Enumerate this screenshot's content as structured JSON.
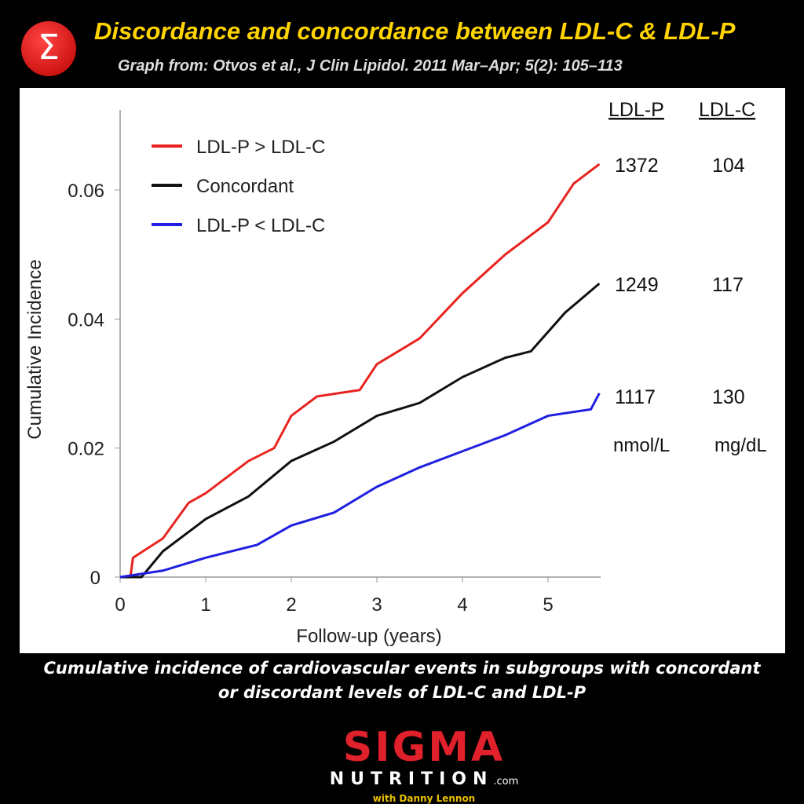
{
  "header": {
    "title": "Discordance and concordance between LDL-C & LDL-P",
    "subtitle": "Graph from: Otvos et al., J Clin Lipidol. 2011 Mar–Apr; 5(2): 105–113",
    "badge": "Σ"
  },
  "caption": "Cumulative incidence of cardiovascular events in subgroups with concordant or discordant levels of LDL-C and LDL-P",
  "logo": {
    "main": "SIGMA",
    "sub": "NUTRITION",
    "domain": ".com",
    "with": "with Danny Lennon"
  },
  "chart_data": {
    "type": "line",
    "title": "",
    "xlabel": "Follow-up (years)",
    "ylabel": "Cumulative Incidence",
    "xlim": [
      0,
      5.7
    ],
    "ylim": [
      0,
      0.07
    ],
    "xticks": [
      "0",
      "1",
      "2",
      "3",
      "4",
      "5"
    ],
    "yticks": [
      "0",
      "0.02",
      "0.04",
      "0.06"
    ],
    "legend_position": "top-left",
    "series": [
      {
        "name": "LDL-P > LDL-C",
        "color": "#e8231f",
        "ldl_p": "1372",
        "ldl_c": "104",
        "points": [
          [
            0,
            0
          ],
          [
            0.12,
            0
          ],
          [
            0.15,
            0.003
          ],
          [
            0.5,
            0.006
          ],
          [
            0.8,
            0.0115
          ],
          [
            1,
            0.013
          ],
          [
            1.5,
            0.018
          ],
          [
            1.8,
            0.02
          ],
          [
            2,
            0.025
          ],
          [
            2.3,
            0.028
          ],
          [
            2.8,
            0.029
          ],
          [
            3,
            0.033
          ],
          [
            3.5,
            0.037
          ],
          [
            4,
            0.044
          ],
          [
            4.5,
            0.05
          ],
          [
            5,
            0.055
          ],
          [
            5.3,
            0.061
          ],
          [
            5.6,
            0.064
          ]
        ]
      },
      {
        "name": "Concordant",
        "color": "#111111",
        "ldl_p": "1249",
        "ldl_c": "117",
        "points": [
          [
            0,
            0
          ],
          [
            0.25,
            0
          ],
          [
            0.5,
            0.004
          ],
          [
            1,
            0.009
          ],
          [
            1.5,
            0.0125
          ],
          [
            2,
            0.018
          ],
          [
            2.5,
            0.021
          ],
          [
            3,
            0.025
          ],
          [
            3.5,
            0.027
          ],
          [
            4,
            0.031
          ],
          [
            4.5,
            0.034
          ],
          [
            4.8,
            0.035
          ],
          [
            5.2,
            0.041
          ],
          [
            5.6,
            0.0455
          ]
        ]
      },
      {
        "name": "LDL-P < LDL-C",
        "color": "#2020e0",
        "ldl_p": "1117",
        "ldl_c": "130",
        "points": [
          [
            0,
            0
          ],
          [
            0.5,
            0.001
          ],
          [
            1,
            0.003
          ],
          [
            1.6,
            0.005
          ],
          [
            2,
            0.008
          ],
          [
            2.5,
            0.01
          ],
          [
            3,
            0.014
          ],
          [
            3.5,
            0.017
          ],
          [
            4,
            0.0195
          ],
          [
            4.5,
            0.022
          ],
          [
            5,
            0.025
          ],
          [
            5.5,
            0.026
          ],
          [
            5.6,
            0.0285
          ]
        ]
      }
    ],
    "table": {
      "headers": [
        "LDL-P",
        "LDL-C"
      ],
      "units": [
        "nmol/L",
        "mg/dL"
      ]
    }
  }
}
